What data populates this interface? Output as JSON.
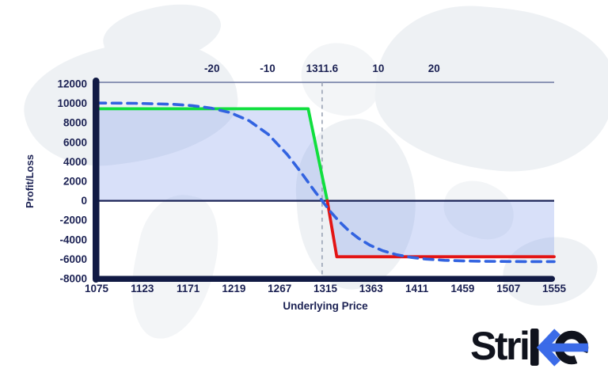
{
  "brand": {
    "name": "Strike",
    "display_prefix": "Stri",
    "accent_color": "#3b6be8",
    "text_color": "#10131d"
  },
  "chart_data": {
    "type": "line",
    "title": "",
    "xlabel": "Underlying Price",
    "ylabel": "Profit/Loss",
    "xlim": [
      1075,
      1555
    ],
    "ylim": [
      -8000,
      12000
    ],
    "grid": false,
    "legend": "none",
    "x_ticks": [
      1075,
      1123,
      1171,
      1219,
      1267,
      1315,
      1363,
      1411,
      1459,
      1507,
      1555
    ],
    "y_ticks": [
      12000,
      10000,
      8000,
      6000,
      4000,
      2000,
      0,
      -2000,
      -4000,
      -6000,
      -8000
    ],
    "top_axis_ticks": [
      {
        "label": "-20",
        "price": 1196
      },
      {
        "label": "-10",
        "price": 1254.4
      },
      {
        "label": "1311.6",
        "price": 1311.6
      },
      {
        "label": "10",
        "price": 1370.5
      },
      {
        "label": "20",
        "price": 1429
      }
    ],
    "strike_marker": {
      "price": 1311.6,
      "label": "1311.6"
    },
    "colors": {
      "label_navy": "#1b2153",
      "axis_bar": "#111a44",
      "zero_line": "#1b2457",
      "top_line": "#6b77a0",
      "marker_dash": "#9aa3b5",
      "profit_green": "#10df3e",
      "loss_red": "#e31414",
      "expected_blue": "#3263e0",
      "fill_blue": "rgba(114,144,233,0.28)"
    },
    "series": [
      {
        "name": "payoff-profit-segment",
        "style": "solid",
        "color_key": "profit_green",
        "points": [
          [
            1075,
            9450
          ],
          [
            1297,
            9450
          ],
          [
            1317,
            0
          ]
        ]
      },
      {
        "name": "payoff-loss-segment",
        "style": "solid",
        "color_key": "loss_red",
        "points": [
          [
            1317,
            0
          ],
          [
            1327,
            -5750
          ],
          [
            1555,
            -5750
          ]
        ]
      },
      {
        "name": "expected-pl-curve",
        "style": "dashed",
        "color_key": "expected_blue",
        "points": [
          [
            1075,
            10040
          ],
          [
            1115,
            10012
          ],
          [
            1155,
            9908
          ],
          [
            1175,
            9776
          ],
          [
            1195,
            9523
          ],
          [
            1215,
            9054
          ],
          [
            1235,
            8218
          ],
          [
            1255,
            6826
          ],
          [
            1275,
            4759
          ],
          [
            1290,
            2846
          ],
          [
            1300,
            1493
          ],
          [
            1305,
            819
          ],
          [
            1311.6,
            0
          ],
          [
            1320,
            -1080
          ],
          [
            1330,
            -2179
          ],
          [
            1340,
            -3110
          ],
          [
            1350,
            -3870
          ],
          [
            1362,
            -4575
          ],
          [
            1375,
            -5123
          ],
          [
            1390,
            -5547
          ],
          [
            1405,
            -5817
          ],
          [
            1420,
            -5984
          ],
          [
            1440,
            -6113
          ],
          [
            1460,
            -6180
          ],
          [
            1480,
            -6210
          ],
          [
            1500,
            -6230
          ],
          [
            1525,
            -6241
          ],
          [
            1555,
            -6247
          ]
        ]
      }
    ],
    "fill_area": {
      "name": "payoff-vs-zero-fill",
      "color_key": "fill_blue",
      "points": [
        [
          1075,
          0
        ],
        [
          1075,
          9450
        ],
        [
          1297,
          9450
        ],
        [
          1317,
          0
        ],
        [
          1327,
          -5750
        ],
        [
          1555,
          -5750
        ],
        [
          1555,
          0
        ]
      ]
    }
  }
}
